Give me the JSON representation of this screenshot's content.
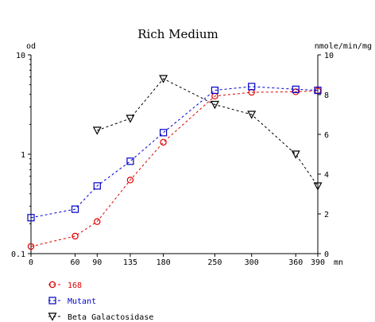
{
  "chart_data": {
    "type": "line",
    "title": "Rich Medium",
    "x_unit": "mn",
    "x_ticks": [
      0,
      60,
      90,
      135,
      180,
      250,
      300,
      360,
      390
    ],
    "left_axis": {
      "label": "od",
      "scale": "log",
      "range": [
        0.1,
        10
      ],
      "ticks": [
        "0.1",
        "1",
        "10"
      ],
      "tick_values": [
        0.1,
        1,
        10
      ]
    },
    "right_axis": {
      "label": "nmole/min/mg",
      "scale": "linear",
      "range": [
        0,
        10
      ],
      "ticks": [
        "0",
        "2",
        "4",
        "6",
        "8",
        "10"
      ],
      "tick_values": [
        0,
        2,
        4,
        6,
        8,
        10
      ]
    },
    "grid": false,
    "legend_position": "bottom-left",
    "series": [
      {
        "name": "168",
        "axis": "left",
        "marker": "circle",
        "color": "#dd0000",
        "x": [
          0,
          60,
          90,
          135,
          180,
          250,
          300,
          360,
          390
        ],
        "y": [
          0.118,
          0.15,
          0.21,
          0.55,
          1.32,
          3.85,
          4.2,
          4.25,
          4.35
        ]
      },
      {
        "name": "Mutant",
        "axis": "left",
        "marker": "square",
        "color": "#0000cc",
        "x": [
          0,
          60,
          90,
          135,
          180,
          250,
          300,
          360,
          390
        ],
        "y": [
          0.23,
          0.28,
          0.48,
          0.85,
          1.65,
          4.4,
          4.8,
          4.5,
          4.4
        ]
      },
      {
        "name": "Beta Galactosidase",
        "axis": "right",
        "marker": "triangle-down",
        "color": "#000000",
        "x": [
          90,
          135,
          180,
          250,
          300,
          360,
          390
        ],
        "y": [
          6.2,
          6.8,
          8.8,
          7.5,
          7.0,
          5.0,
          3.4
        ]
      }
    ]
  }
}
